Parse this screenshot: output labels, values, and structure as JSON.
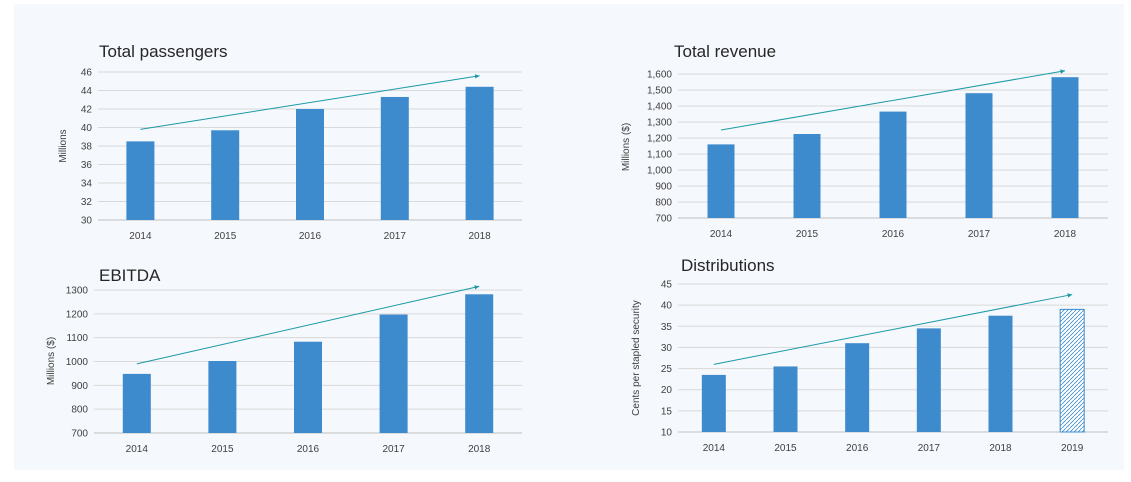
{
  "chart_data": [
    {
      "type": "bar",
      "title": "Total passengers",
      "ylabel": "Millions",
      "categories": [
        "2014",
        "2015",
        "2016",
        "2017",
        "2018"
      ],
      "values": [
        38.5,
        39.7,
        42.0,
        43.3,
        44.4
      ],
      "ylim": [
        30,
        46
      ],
      "yticks": [
        30,
        32,
        34,
        36,
        38,
        40,
        42,
        44,
        46
      ],
      "ytick_labels": [
        "30",
        "32",
        "34",
        "36",
        "38",
        "40",
        "42",
        "44",
        "46"
      ],
      "trend": [
        39.8,
        45.6
      ],
      "grid": true,
      "bar_color": "#3d8bcd",
      "trend_color": "#1a9aa5"
    },
    {
      "type": "bar",
      "title": "Total revenue",
      "ylabel": "Millions ($)",
      "categories": [
        "2014",
        "2015",
        "2016",
        "2017",
        "2018"
      ],
      "values": [
        1160,
        1225,
        1365,
        1480,
        1580
      ],
      "ylim": [
        700,
        1600
      ],
      "yticks": [
        700,
        800,
        900,
        1000,
        1100,
        1200,
        1300,
        1400,
        1500,
        1600
      ],
      "ytick_labels": [
        "700",
        "800",
        "900",
        "1,000",
        "1,100",
        "1,200",
        "1,300",
        "1,400",
        "1,500",
        "1,600"
      ],
      "trend": [
        1250,
        1620
      ],
      "grid": true,
      "bar_color": "#3d8bcd",
      "trend_color": "#1a9aa5"
    },
    {
      "type": "bar",
      "title": "EBITDA",
      "ylabel": "Millions ($)",
      "categories": [
        "2014",
        "2015",
        "2016",
        "2017",
        "2018"
      ],
      "values": [
        948,
        1002,
        1083,
        1197,
        1282
      ],
      "ylim": [
        700,
        1300
      ],
      "yticks": [
        700,
        800,
        900,
        1000,
        1100,
        1200,
        1300
      ],
      "ytick_labels": [
        "700",
        "800",
        "900",
        "1000",
        "1100",
        "1200",
        "1300"
      ],
      "trend": [
        990,
        1315
      ],
      "grid": true,
      "bar_color": "#3d8bcd",
      "trend_color": "#1a9aa5"
    },
    {
      "type": "bar",
      "title": "Distributions",
      "ylabel": "Cents per stapled security",
      "categories": [
        "2014",
        "2015",
        "2016",
        "2017",
        "2018",
        "2019"
      ],
      "values": [
        23.5,
        25.5,
        31,
        34.5,
        37.5,
        39
      ],
      "forecast_index": 5,
      "ylim": [
        10,
        45
      ],
      "yticks": [
        10,
        15,
        20,
        25,
        30,
        35,
        40,
        45
      ],
      "ytick_labels": [
        "10",
        "15",
        "20",
        "25",
        "30",
        "35",
        "40",
        "45"
      ],
      "trend": [
        26,
        42.5
      ],
      "grid": true,
      "bar_color": "#3d8bcd",
      "trend_color": "#1a9aa5"
    }
  ]
}
